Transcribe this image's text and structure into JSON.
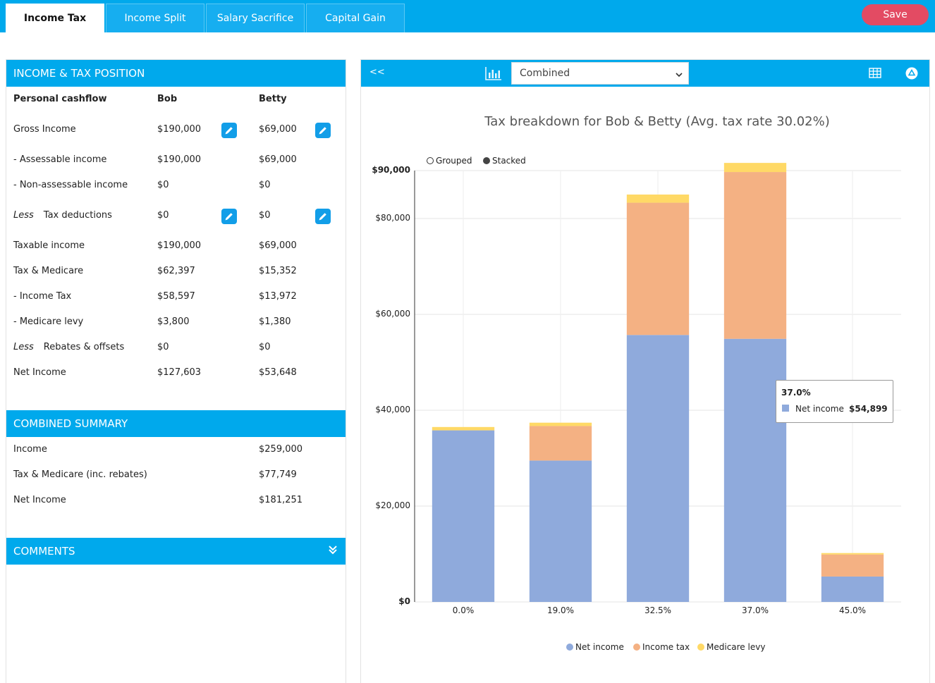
{
  "tabs": [
    {
      "label": "Income Tax",
      "active": true
    },
    {
      "label": "Income Split",
      "active": false
    },
    {
      "label": "Salary Sacrifice",
      "active": false
    },
    {
      "label": "Capital Gain",
      "active": false
    }
  ],
  "save_label": "Save",
  "income_tax_position": {
    "title": "INCOME & TAX POSITION",
    "columns": [
      "Personal cashflow",
      "Bob",
      "Betty"
    ],
    "rows": [
      {
        "label": "Gross Income",
        "less": "",
        "bob": "$190,000",
        "betty": "$69,000",
        "editable": true
      },
      {
        "label": "- Assessable income",
        "less": "",
        "bob": "$190,000",
        "betty": "$69,000",
        "editable": false
      },
      {
        "label": "- Non-assessable income",
        "less": "",
        "bob": "$0",
        "betty": "$0",
        "editable": false
      },
      {
        "label": "Tax deductions",
        "less": "Less",
        "bob": "$0",
        "betty": "$0",
        "editable": true
      },
      {
        "label": "Taxable income",
        "less": "",
        "bob": "$190,000",
        "betty": "$69,000",
        "editable": false
      },
      {
        "label": "Tax & Medicare",
        "less": "",
        "bob": "$62,397",
        "betty": "$15,352",
        "editable": false
      },
      {
        "label": "- Income Tax",
        "less": "",
        "bob": "$58,597",
        "betty": "$13,972",
        "editable": false
      },
      {
        "label": "- Medicare levy",
        "less": "",
        "bob": "$3,800",
        "betty": "$1,380",
        "editable": false
      },
      {
        "label": "Rebates & offsets",
        "less": "Less",
        "bob": "$0",
        "betty": "$0",
        "editable": false
      },
      {
        "label": "Net Income",
        "less": "",
        "bob": "$127,603",
        "betty": "$53,648",
        "editable": false
      }
    ]
  },
  "combined_summary": {
    "title": "COMBINED SUMMARY",
    "rows": [
      {
        "label": "Income",
        "value": "$259,000"
      },
      {
        "label": "Tax & Medicare (inc. rebates)",
        "value": "$77,749"
      },
      {
        "label": "Net Income",
        "value": "$181,251"
      }
    ]
  },
  "comments": {
    "title": "COMMENTS"
  },
  "chart_panel": {
    "collapse_label": "<<",
    "select_value": "Combined",
    "toggle": [
      {
        "label": "Grouped",
        "selected": false
      },
      {
        "label": "Stacked",
        "selected": true
      }
    ]
  },
  "colors": {
    "accent": "#00a9ec",
    "save": "#e34b63",
    "net_income": "#8faadc",
    "income_tax": "#f4b183",
    "medicare_levy": "#ffd966"
  },
  "chart_data": {
    "type": "bar",
    "stacked": true,
    "title": "Tax breakdown for Bob & Betty (Avg. tax rate 30.02%)",
    "categories": [
      "0.0%",
      "19.0%",
      "32.5%",
      "37.0%",
      "45.0%"
    ],
    "series": [
      {
        "name": "Net income",
        "values": [
          35800,
          29500,
          55700,
          54899,
          5300
        ]
      },
      {
        "name": "Income tax",
        "values": [
          0,
          7200,
          27600,
          34800,
          4600
        ]
      },
      {
        "name": "Medicare levy",
        "values": [
          700,
          700,
          1700,
          1900,
          300
        ]
      }
    ],
    "ylim": [
      0,
      90000
    ],
    "yticks": [
      "$0",
      "$20,000",
      "$40,000",
      "$60,000",
      "$80,000",
      "$90,000"
    ],
    "ytick_values": [
      0,
      20000,
      40000,
      60000,
      80000,
      90000
    ],
    "legend": "bottom",
    "grid": true,
    "tooltip": {
      "title": "37.0%",
      "label": "Net income",
      "value": "$54,899"
    }
  }
}
